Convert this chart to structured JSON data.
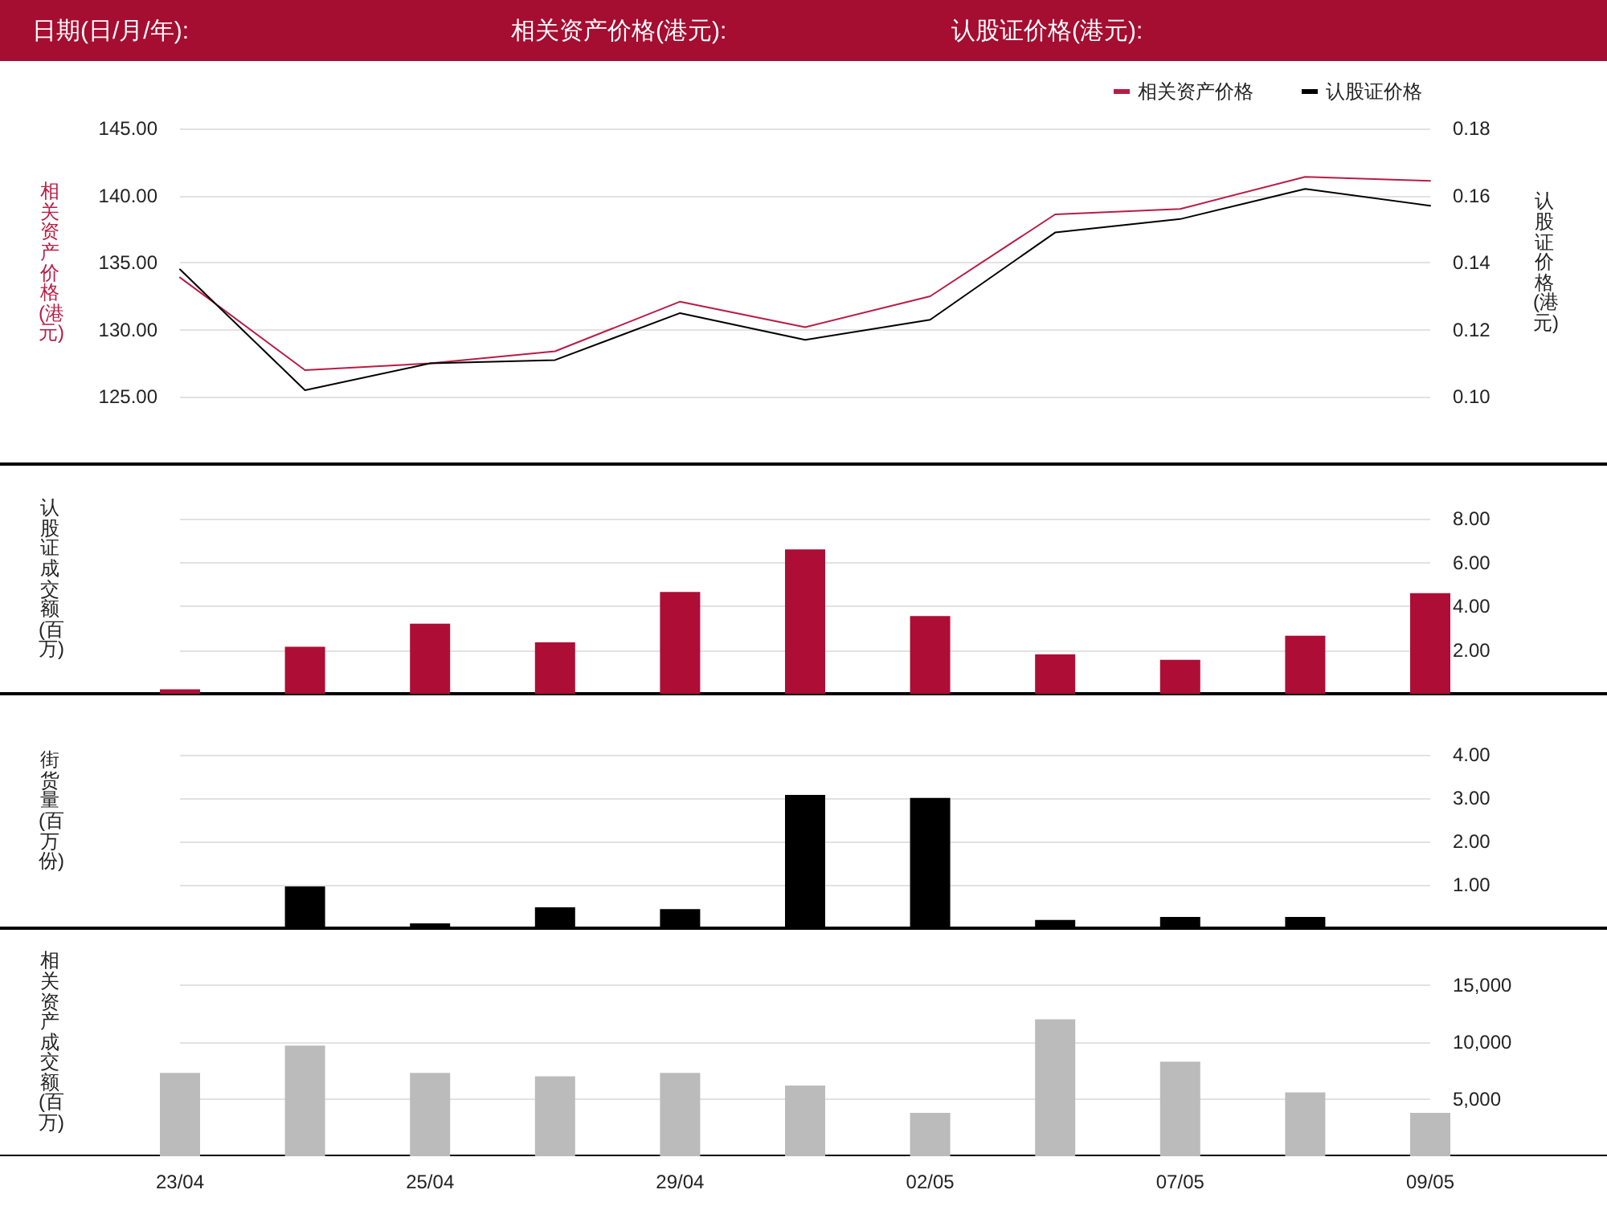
{
  "chart_data": [
    {
      "type": "line",
      "annotations": [
        "日期(日/月/年):",
        "相关资产价格(港元):",
        "认股证价格(港元):"
      ],
      "ylabel": "相关资产价格(港元)",
      "y2label": "认股证价格(港元)",
      "categories": [
        null,
        null,
        null,
        null,
        null,
        null,
        null,
        null,
        null,
        null,
        null
      ],
      "series": [
        {
          "name": "相关资产价格",
          "color": "#b81c45",
          "values": [
            133.9,
            127.0,
            127.5,
            128.4,
            132.1,
            130.2,
            132.5,
            138.6,
            139.0,
            141.4,
            141.1
          ]
        },
        {
          "name": "认股证价格",
          "color": "#000000",
          "axis": "y2",
          "values": [
            0.138,
            0.102,
            0.11,
            0.111,
            0.125,
            0.117,
            0.123,
            0.149,
            0.153,
            0.162,
            0.157
          ]
        }
      ],
      "ylim": [
        120,
        145
      ],
      "yticks": [
        {
          "value": 125,
          "label": "125.00"
        },
        {
          "value": 130,
          "label": "130.00"
        },
        {
          "value": 135,
          "label": "135.00"
        },
        {
          "value": 140,
          "label": "140.00"
        },
        {
          "value": 145,
          "label": "145.00"
        }
      ],
      "y2lim": [
        0.08,
        0.18
      ],
      "y2ticks": [
        {
          "value": 0.1,
          "label": "0.10"
        },
        {
          "value": 0.12,
          "label": "0.12"
        },
        {
          "value": 0.14,
          "label": "0.14"
        },
        {
          "value": 0.16,
          "label": "0.16"
        },
        {
          "value": 0.18,
          "label": "0.18"
        }
      ],
      "grid": "y",
      "legend": "top right",
      "tick_labels": "y",
      "marker": "none",
      "line_style": "solid"
    },
    {
      "type": "bar",
      "ylabel": "认股证成交额(百万)",
      "categories": [
        null,
        null,
        null,
        null,
        null,
        null,
        null,
        null,
        null,
        null,
        null
      ],
      "color": "#ae0e36",
      "values": [
        0.2,
        2.15,
        3.2,
        2.35,
        4.65,
        6.6,
        3.55,
        1.8,
        1.55,
        2.65,
        4.6
      ],
      "ylim": [
        0,
        10.5
      ],
      "yticks": [
        {
          "value": 2,
          "label": "2.00"
        },
        {
          "value": 4,
          "label": "4.00"
        },
        {
          "value": 6,
          "label": "6.00"
        },
        {
          "value": 8,
          "label": "8.00"
        }
      ],
      "grid": "y",
      "tick_labels": "y"
    },
    {
      "type": "bar",
      "ylabel": "街货量(百万份)",
      "categories": [
        null,
        null,
        null,
        null,
        null,
        null,
        null,
        null,
        null,
        null,
        null
      ],
      "color": "#000000",
      "values": [
        null,
        0.96,
        0.11,
        0.48,
        0.44,
        3.07,
        3.0,
        0.19,
        0.26,
        0.26,
        null
      ],
      "ylim": [
        0,
        5.4
      ],
      "yticks": [
        {
          "value": 1,
          "label": "1.00"
        },
        {
          "value": 2,
          "label": "2.00"
        },
        {
          "value": 3,
          "label": "3.00"
        },
        {
          "value": 4,
          "label": "4.00"
        }
      ],
      "grid": "y",
      "tick_labels": "y"
    },
    {
      "type": "bar",
      "ylabel": "相关资产成交额(百万)",
      "categories": [
        "23/04",
        null,
        "25/04",
        null,
        "29/04",
        null,
        "02/05",
        null,
        "07/05",
        null,
        "09/05"
      ],
      "color": "#bbbbbb",
      "values": [
        7300,
        9700,
        7300,
        7000,
        7300,
        6200,
        3800,
        12000,
        8300,
        5600,
        3800
      ],
      "ylim": [
        0,
        20000
      ],
      "yticks": [
        {
          "value": 5000,
          "label": "5,000"
        },
        {
          "value": 10000,
          "label": "10,000"
        },
        {
          "value": 15000,
          "label": "15,000"
        }
      ],
      "grid": "y"
    }
  ]
}
